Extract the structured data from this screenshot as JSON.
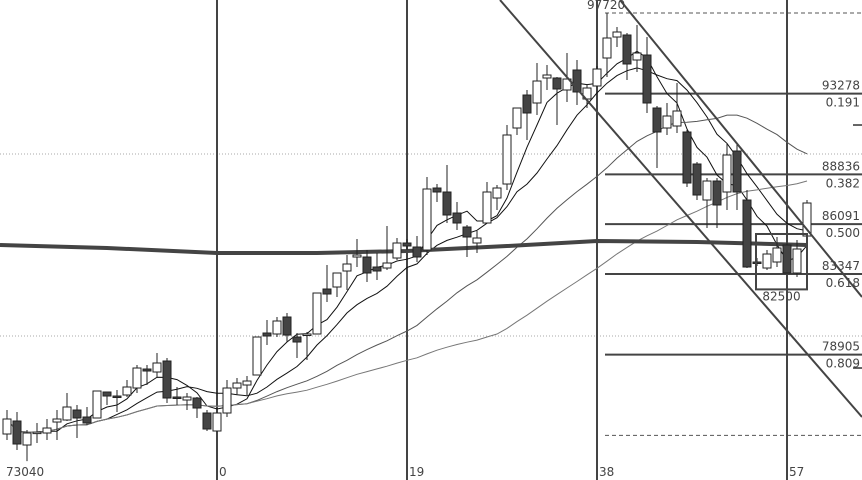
{
  "chart_data": {
    "type": "candlestick",
    "title": "",
    "xlabel": "",
    "ylabel": "",
    "x_range": [
      -21.7,
      64.5
    ],
    "ylim": [
      72003,
      98436
    ],
    "grid": "dotted horizontal lines",
    "colors": {
      "up_body": "#ffffff",
      "down_body": "#444444",
      "outline": "#222222",
      "thick_ma": "#444444",
      "fib": "#444444"
    },
    "x_start": -21,
    "candles": [
      [
        74536,
        75362,
        75857,
        74205
      ],
      [
        75252,
        73985,
        75747,
        73654
      ],
      [
        73930,
        74591,
        74756,
        73040
      ],
      [
        74590,
        74640,
        75141,
        74040
      ],
      [
        74591,
        74866,
        75362,
        74205
      ],
      [
        75196,
        75362,
        75857,
        74205
      ],
      [
        75307,
        76023,
        76793,
        75252
      ],
      [
        75857,
        75417,
        76133,
        74315
      ],
      [
        75472,
        75141,
        76023,
        75031
      ],
      [
        75417,
        76904,
        76904,
        75417
      ],
      [
        76849,
        76628,
        76849,
        76133
      ],
      [
        76628,
        76573,
        76959,
        75747
      ],
      [
        76684,
        77124,
        77509,
        76573
      ],
      [
        77069,
        78170,
        78335,
        76793
      ],
      [
        78115,
        78005,
        78335,
        77234
      ],
      [
        77950,
        78446,
        78996,
        77620
      ],
      [
        78556,
        76518,
        78721,
        76243
      ],
      [
        76573,
        76518,
        77124,
        76133
      ],
      [
        76408,
        76573,
        76793,
        75857
      ],
      [
        76518,
        75967,
        76573,
        75417
      ],
      [
        75692,
        74811,
        75857,
        74701
      ],
      [
        74701,
        75692,
        75692,
        74701
      ],
      [
        75692,
        77069,
        77509,
        75472
      ],
      [
        77069,
        77344,
        77620,
        76684
      ],
      [
        77234,
        77454,
        77730,
        76684
      ],
      [
        77785,
        79877,
        79877,
        77785
      ],
      [
        80098,
        79932,
        80814,
        79437
      ],
      [
        80043,
        80759,
        80979,
        79877
      ],
      [
        80979,
        79987,
        81199,
        79602
      ],
      [
        79877,
        79602,
        80098,
        78721
      ],
      [
        79987,
        80043,
        80153,
        78611
      ],
      [
        80043,
        82300,
        82300,
        80043
      ],
      [
        82521,
        82245,
        83842,
        81805
      ],
      [
        82631,
        83402,
        83402,
        82080
      ],
      [
        83512,
        83898,
        84393,
        82466
      ],
      [
        84283,
        84393,
        85274,
        83732
      ],
      [
        84283,
        83402,
        84668,
        82906
      ],
      [
        83732,
        83512,
        84503,
        83016
      ],
      [
        83677,
        83953,
        85990,
        83567
      ],
      [
        84228,
        85054,
        85329,
        84118
      ],
      [
        85054,
        84889,
        85274,
        84668
      ],
      [
        84834,
        84283,
        85439,
        84008
      ],
      [
        84668,
        88028,
        88689,
        84393
      ],
      [
        88083,
        87863,
        88303,
        87312
      ],
      [
        87863,
        86596,
        89349,
        86155
      ],
      [
        86706,
        86155,
        87312,
        85770
      ],
      [
        85935,
        85384,
        86045,
        84283
      ],
      [
        85054,
        85329,
        85715,
        84503
      ],
      [
        86155,
        87863,
        88413,
        86155
      ],
      [
        87532,
        88083,
        88248,
        86871
      ],
      [
        88303,
        91002,
        91552,
        87973
      ],
      [
        91387,
        92488,
        92488,
        91002
      ],
      [
        93204,
        92213,
        93480,
        90726
      ],
      [
        92764,
        93975,
        94967,
        92103
      ],
      [
        94141,
        94306,
        94856,
        93480
      ],
      [
        94141,
        93535,
        94196,
        91552
      ],
      [
        93480,
        94085,
        95517,
        92819
      ],
      [
        94581,
        93370,
        95132,
        92654
      ],
      [
        92984,
        93590,
        93755,
        92488
      ],
      [
        93700,
        94636,
        94801,
        93700
      ],
      [
        95242,
        96343,
        97720,
        94196
      ],
      [
        96398,
        96674,
        96949,
        95848
      ],
      [
        96509,
        94912,
        96619,
        94030
      ],
      [
        95132,
        95517,
        97059,
        94471
      ],
      [
        95407,
        92764,
        96398,
        92213
      ],
      [
        92488,
        91167,
        92598,
        89184
      ],
      [
        91387,
        92048,
        92764,
        91002
      ],
      [
        91497,
        92323,
        93865,
        91112
      ],
      [
        91167,
        88358,
        91277,
        88138
      ],
      [
        89405,
        87697,
        89515,
        87422
      ],
      [
        87422,
        88468,
        88633,
        85880
      ],
      [
        88468,
        87147,
        88633,
        85880
      ],
      [
        87863,
        89900,
        90561,
        86871
      ],
      [
        90120,
        87863,
        90561,
        86871
      ],
      [
        87422,
        83732,
        87973,
        83677
      ],
      [
        84008,
        83980,
        84228,
        83787
      ],
      [
        83677,
        84448,
        84668,
        83567
      ],
      [
        84008,
        84779,
        85384,
        83732
      ],
      [
        84944,
        83402,
        85054,
        83402
      ],
      [
        83402,
        84724,
        85219,
        83182
      ],
      [
        85439,
        87257,
        87422,
        85219
      ]
    ],
    "thick_ma": [
      [
        -21,
        84944
      ],
      [
        -11,
        84779
      ],
      [
        0,
        84503
      ],
      [
        10,
        84503
      ],
      [
        19,
        84613
      ],
      [
        29,
        84889
      ],
      [
        38,
        85164
      ],
      [
        48,
        85109
      ],
      [
        59,
        84944
      ]
    ],
    "vertical_lines": [
      {
        "bar": 0,
        "label": "0"
      },
      {
        "bar": 19,
        "label": "19"
      },
      {
        "bar": 38,
        "label": "38"
      },
      {
        "bar": 57,
        "label": "57"
      }
    ],
    "low_label": "73040",
    "high_label": "97720",
    "high_price": 97720,
    "fib_low": 74462,
    "fib_levels": [
      {
        "price": 93278,
        "price_label": "93278",
        "ratio": "0.191"
      },
      {
        "price": 88836,
        "price_label": "88836",
        "ratio": "0.382"
      },
      {
        "price": 86091,
        "price_label": "86091",
        "ratio": "0.500"
      },
      {
        "price": 83347,
        "price_label": "83347",
        "ratio": "0.618"
      },
      {
        "price": 78905,
        "price_label": "78905",
        "ratio": "0.809"
      }
    ],
    "dotted_gridlines": [
      89955,
      79932
    ],
    "channel_lines": [
      [
        [
          28.3,
          98436
        ],
        [
          64.5,
          75472
        ]
      ],
      [
        [
          40.3,
          98436
        ],
        [
          64.5,
          82080
        ]
      ]
    ],
    "box": {
      "bar_from": 53.9,
      "bar_to": 59,
      "price_top": 85550,
      "price_bottom": 82500,
      "label": "82500"
    },
    "right_markers": [
      91552,
      78170
    ]
  }
}
